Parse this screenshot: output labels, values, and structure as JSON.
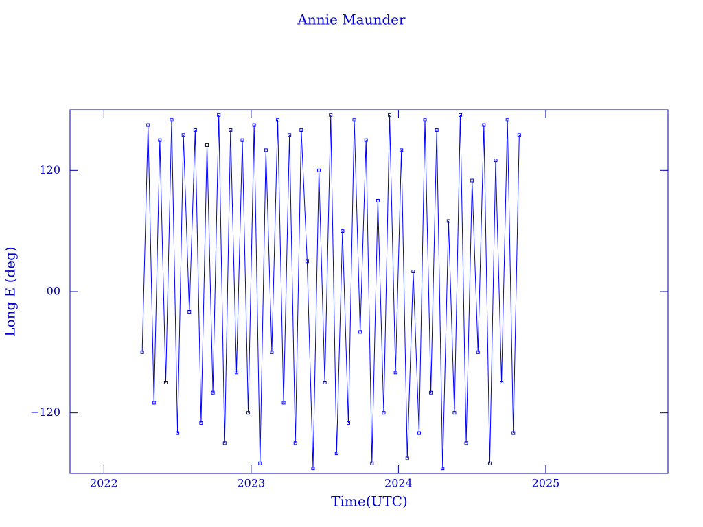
{
  "chart_data": {
    "type": "line",
    "title": "Annie Maunder",
    "x_label": "Time(UTC)",
    "y_label": "Long E (deg)",
    "x": [
      2022.26,
      2022.3,
      2022.34,
      2022.38,
      2022.42,
      2022.46,
      2022.5,
      2022.54,
      2022.58,
      2022.62,
      2022.66,
      2022.7,
      2022.74,
      2022.78,
      2022.82,
      2022.86,
      2022.9,
      2022.94,
      2022.98,
      2023.02,
      2023.06,
      2023.1,
      2023.14,
      2023.18,
      2023.22,
      2023.26,
      2023.3,
      2023.34,
      2023.38,
      2023.42,
      2023.46,
      2023.5,
      2023.54,
      2023.58,
      2023.62,
      2023.66,
      2023.7,
      2023.74,
      2023.78,
      2023.82,
      2023.86,
      2023.9,
      2023.94,
      2023.98,
      2024.02,
      2024.06,
      2024.1,
      2024.14,
      2024.18,
      2024.22,
      2024.26,
      2024.3,
      2024.34,
      2024.38,
      2024.42,
      2024.46,
      2024.5,
      2024.54,
      2024.58,
      2024.62,
      2024.66,
      2024.7,
      2024.74,
      2024.78,
      2024.82
    ],
    "series": [
      {
        "color": "#0000ff",
        "values": [
          -60,
          165,
          -110,
          150,
          -90,
          170,
          -140,
          155,
          -20,
          160,
          -130,
          145,
          -100,
          175,
          -150,
          160,
          -80,
          150,
          -120,
          165,
          -170,
          140,
          -60,
          170,
          -110,
          155,
          -150,
          160,
          30,
          -175,
          120,
          -90,
          175,
          -160,
          60,
          -130,
          170,
          -40,
          150,
          -170,
          90,
          -120,
          175,
          -80,
          140,
          -165,
          20,
          -140,
          170,
          -100,
          160,
          -175,
          70,
          -120,
          175,
          -150,
          110,
          -60,
          165,
          -170,
          130,
          -90,
          170,
          -140,
          155
        ]
      }
    ],
    "xlim": [
      2021.77,
      2025.83
    ],
    "xticks": [
      2022,
      2023,
      2024,
      2025
    ],
    "ylim": [
      -180,
      180
    ],
    "yticks": [
      {
        "value": -120,
        "label": "−120"
      },
      {
        "value": 0,
        "label": "00"
      },
      120
    ],
    "markers": true
  }
}
